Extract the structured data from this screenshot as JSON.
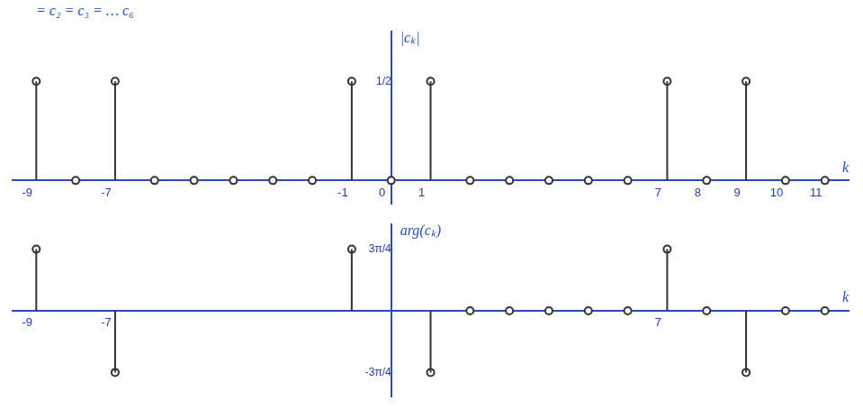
{
  "chart_data": [
    {
      "type": "stem",
      "annotation": "= c₂ = c₃ = … c₆",
      "ylabel": "|cₖ|",
      "xlabel": "k",
      "x": [
        -9,
        -8,
        -7,
        -6,
        -5,
        -4,
        -3,
        -2,
        -1,
        0,
        1,
        2,
        3,
        4,
        5,
        6,
        7,
        8,
        9,
        10,
        11
      ],
      "values": [
        0.5,
        0,
        0.5,
        0,
        0,
        0,
        0,
        0,
        0.5,
        0,
        0.5,
        0,
        0,
        0,
        0,
        0,
        0.5,
        0,
        0.5,
        0,
        0
      ],
      "xlim": [
        -9.6,
        11.6
      ],
      "xticks": [
        -9,
        -7,
        -1,
        0,
        1,
        7,
        8,
        9,
        10,
        11
      ],
      "ylim": [
        -0.12,
        0.75
      ],
      "yticks": [
        {
          "value": 0.5,
          "label": "1/2"
        }
      ],
      "color": "#333333",
      "marker": "circle",
      "grid": false
    },
    {
      "type": "stem",
      "ylabel": "arg(cₖ)",
      "xlabel": "k",
      "x": [
        -9,
        -7,
        -1,
        1,
        2,
        3,
        4,
        5,
        6,
        7,
        8,
        9,
        10,
        11
      ],
      "values": [
        2.356,
        -2.356,
        2.356,
        -2.356,
        0,
        0,
        0,
        0,
        0,
        2.356,
        0,
        -2.356,
        0,
        0
      ],
      "xlim": [
        -9.6,
        11.6
      ],
      "xticks": [
        -9,
        -7,
        7
      ],
      "ylim": [
        -3.3,
        3.3
      ],
      "yticks": [
        {
          "value": -2.356,
          "label": "-3π/4"
        },
        {
          "value": 2.356,
          "label": "3π/4"
        }
      ],
      "color": "#333333",
      "marker": "circle",
      "grid": false
    }
  ]
}
